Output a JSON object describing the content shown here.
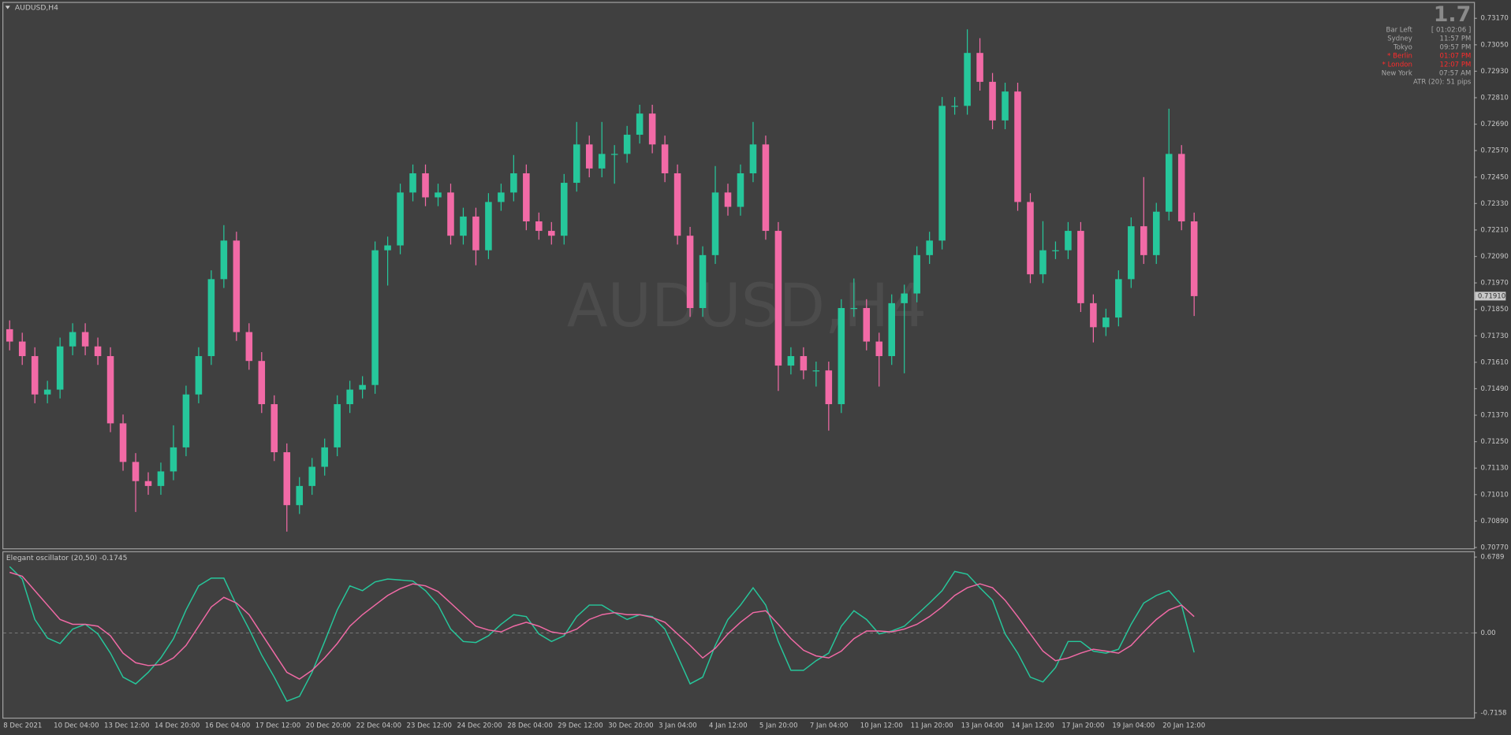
{
  "chart_data": [
    {
      "type": "candlestick",
      "title": "AUDUSD,H4",
      "up_color": "#26c79b",
      "down_color": "#f26aa6",
      "ylim": [
        0.70766,
        0.7324
      ],
      "yticks": [
        {
          "value": 0.7077,
          "label": "0.70770"
        },
        {
          "value": 0.7089,
          "label": "0.70890"
        },
        {
          "value": 0.7101,
          "label": "0.71010"
        },
        {
          "value": 0.7113,
          "label": "0.71130"
        },
        {
          "value": 0.7125,
          "label": "0.71250"
        },
        {
          "value": 0.7137,
          "label": "0.71370"
        },
        {
          "value": 0.7149,
          "label": "0.71490"
        },
        {
          "value": 0.7161,
          "label": "0.71610"
        },
        {
          "value": 0.7173,
          "label": "0.71730"
        },
        {
          "value": 0.7185,
          "label": "0.71850"
        },
        {
          "value": 0.7197,
          "label": "0.71970"
        },
        {
          "value": 0.7209,
          "label": "0.72090"
        },
        {
          "value": 0.7221,
          "label": "0.72210"
        },
        {
          "value": 0.7233,
          "label": "0.72330"
        },
        {
          "value": 0.7245,
          "label": "0.72450"
        },
        {
          "value": 0.7257,
          "label": "0.72570"
        },
        {
          "value": 0.7269,
          "label": "0.72690"
        },
        {
          "value": 0.7281,
          "label": "0.72810"
        },
        {
          "value": 0.7293,
          "label": "0.72930"
        },
        {
          "value": 0.7305,
          "label": "0.73050"
        },
        {
          "value": 0.7317,
          "label": "0.73170"
        }
      ],
      "grid": false,
      "last_price_label": "0.71910",
      "categories": [
        "8 Dec 2021",
        null,
        null,
        null,
        "10 Dec 04:00",
        null,
        null,
        null,
        "13 Dec 12:00",
        null,
        null,
        null,
        "14 Dec 20:00",
        null,
        null,
        null,
        "16 Dec 04:00",
        null,
        null,
        null,
        "17 Dec 12:00",
        null,
        null,
        null,
        "20 Dec 20:00",
        null,
        null,
        null,
        "22 Dec 04:00",
        null,
        null,
        null,
        "23 Dec 12:00",
        null,
        null,
        null,
        "24 Dec 20:00",
        null,
        null,
        null,
        "28 Dec 04:00",
        null,
        null,
        null,
        "29 Dec 12:00",
        null,
        null,
        null,
        "30 Dec 20:00",
        null,
        null,
        null,
        "3 Jan 04:00",
        null,
        null,
        null,
        "4 Jan 12:00",
        null,
        null,
        null,
        "5 Jan 20:00",
        null,
        null,
        null,
        "7 Jan 04:00",
        null,
        null,
        null,
        "10 Jan 12:00",
        null,
        null,
        null,
        "11 Jan 20:00",
        null,
        null,
        null,
        "13 Jan 04:00",
        null,
        null,
        null,
        "14 Jan 12:00",
        null,
        null,
        null,
        "17 Jan 20:00",
        null,
        null,
        null,
        "19 Jan 04:00",
        null,
        null,
        null,
        "20 Jan 12:00",
        null,
        null
      ],
      "ohlc": [
        [
          0.7176,
          0.718,
          0.71664,
          0.71704
        ],
        [
          0.71704,
          0.71744,
          0.71598,
          0.71638
        ],
        [
          0.71638,
          0.71678,
          0.71424,
          0.71464
        ],
        [
          0.71464,
          0.71526,
          0.71424,
          0.71486
        ],
        [
          0.71486,
          0.71722,
          0.71446,
          0.71682
        ],
        [
          0.71682,
          0.71787,
          0.71642,
          0.71747
        ],
        [
          0.71747,
          0.71787,
          0.71642,
          0.71682
        ],
        [
          0.71682,
          0.71722,
          0.71598,
          0.71638
        ],
        [
          0.71638,
          0.71678,
          0.71293,
          0.71333
        ],
        [
          0.71333,
          0.71373,
          0.71118,
          0.71158
        ],
        [
          0.71158,
          0.71198,
          0.70931,
          0.71071
        ],
        [
          0.71071,
          0.71111,
          0.71009,
          0.71049
        ],
        [
          0.71049,
          0.71155,
          0.71009,
          0.71115
        ],
        [
          0.71115,
          0.71324,
          0.71075,
          0.71224
        ],
        [
          0.71224,
          0.71504,
          0.71184,
          0.71464
        ],
        [
          0.71464,
          0.71678,
          0.71424,
          0.71638
        ],
        [
          0.71638,
          0.72027,
          0.71598,
          0.71987
        ],
        [
          0.71987,
          0.72232,
          0.71947,
          0.72162
        ],
        [
          0.72162,
          0.72202,
          0.71707,
          0.71747
        ],
        [
          0.71747,
          0.71787,
          0.71576,
          0.71616
        ],
        [
          0.71616,
          0.71656,
          0.7138,
          0.7142
        ],
        [
          0.7142,
          0.7146,
          0.71162,
          0.71202
        ],
        [
          0.71202,
          0.71242,
          0.70842,
          0.70962
        ],
        [
          0.70962,
          0.71089,
          0.70922,
          0.71049
        ],
        [
          0.71049,
          0.71176,
          0.71009,
          0.71136
        ],
        [
          0.71136,
          0.71264,
          0.71096,
          0.71224
        ],
        [
          0.71224,
          0.7146,
          0.71184,
          0.7142
        ],
        [
          0.7142,
          0.71526,
          0.7138,
          0.71486
        ],
        [
          0.71486,
          0.71547,
          0.71446,
          0.71507
        ],
        [
          0.71507,
          0.72158,
          0.71467,
          0.72118
        ],
        [
          0.72118,
          0.7218,
          0.71958,
          0.7214
        ],
        [
          0.7214,
          0.7242,
          0.721,
          0.7238
        ],
        [
          0.7238,
          0.72507,
          0.7234,
          0.72467
        ],
        [
          0.72467,
          0.72507,
          0.72318,
          0.72358
        ],
        [
          0.72358,
          0.7242,
          0.72318,
          0.7238
        ],
        [
          0.7238,
          0.7242,
          0.72144,
          0.72184
        ],
        [
          0.72184,
          0.72311,
          0.72144,
          0.72271
        ],
        [
          0.72271,
          0.72311,
          0.7205,
          0.72118
        ],
        [
          0.72118,
          0.72377,
          0.72078,
          0.72337
        ],
        [
          0.72337,
          0.7242,
          0.72297,
          0.7238
        ],
        [
          0.7238,
          0.7255,
          0.7234,
          0.72467
        ],
        [
          0.72467,
          0.72507,
          0.72209,
          0.72249
        ],
        [
          0.72249,
          0.72289,
          0.72166,
          0.72206
        ],
        [
          0.72206,
          0.72246,
          0.72144,
          0.72184
        ],
        [
          0.72184,
          0.72464,
          0.72144,
          0.72424
        ],
        [
          0.72424,
          0.727,
          0.72384,
          0.72598
        ],
        [
          0.72598,
          0.72638,
          0.72449,
          0.72489
        ],
        [
          0.72489,
          0.727,
          0.72449,
          0.72555
        ],
        [
          0.72555,
          0.72595,
          0.7242,
          0.72555
        ],
        [
          0.72555,
          0.72682,
          0.72515,
          0.72642
        ],
        [
          0.72642,
          0.72778,
          0.72602,
          0.72738
        ],
        [
          0.72738,
          0.72778,
          0.72558,
          0.72598
        ],
        [
          0.72598,
          0.72638,
          0.72427,
          0.72467
        ],
        [
          0.72467,
          0.72507,
          0.72144,
          0.72184
        ],
        [
          0.72184,
          0.72224,
          0.71816,
          0.71856
        ],
        [
          0.71856,
          0.72136,
          0.71816,
          0.72096
        ],
        [
          0.72096,
          0.725,
          0.72056,
          0.7238
        ],
        [
          0.7238,
          0.7242,
          0.72275,
          0.72315
        ],
        [
          0.72315,
          0.72507,
          0.72275,
          0.72467
        ],
        [
          0.72467,
          0.727,
          0.72427,
          0.72598
        ],
        [
          0.72598,
          0.72638,
          0.72166,
          0.72206
        ],
        [
          0.72206,
          0.72246,
          0.7148,
          0.71595
        ],
        [
          0.71595,
          0.71678,
          0.71555,
          0.71638
        ],
        [
          0.71638,
          0.71678,
          0.71533,
          0.71573
        ],
        [
          0.71573,
          0.71613,
          0.715,
          0.71573
        ],
        [
          0.71573,
          0.71613,
          0.713,
          0.7142
        ],
        [
          0.7142,
          0.71896,
          0.7138,
          0.71856
        ],
        [
          0.71856,
          0.7199,
          0.71816,
          0.71856
        ],
        [
          0.71856,
          0.71896,
          0.71664,
          0.71704
        ],
        [
          0.71704,
          0.71744,
          0.715,
          0.71638
        ],
        [
          0.71638,
          0.71918,
          0.71598,
          0.71878
        ],
        [
          0.71878,
          0.71962,
          0.7156,
          0.71922
        ],
        [
          0.71922,
          0.72136,
          0.71882,
          0.72096
        ],
        [
          0.72096,
          0.72202,
          0.72056,
          0.72162
        ],
        [
          0.72162,
          0.72813,
          0.72122,
          0.72773
        ],
        [
          0.72773,
          0.72813,
          0.72733,
          0.72773
        ],
        [
          0.72773,
          0.7312,
          0.72733,
          0.73013
        ],
        [
          0.73013,
          0.7308,
          0.72842,
          0.72882
        ],
        [
          0.72882,
          0.72922,
          0.72667,
          0.72707
        ],
        [
          0.72707,
          0.72878,
          0.72667,
          0.72838
        ],
        [
          0.72838,
          0.72878,
          0.72297,
          0.72337
        ],
        [
          0.72337,
          0.72377,
          0.71969,
          0.72009
        ],
        [
          0.72009,
          0.7225,
          0.71969,
          0.72118
        ],
        [
          0.72118,
          0.72158,
          0.72078,
          0.72118
        ],
        [
          0.72118,
          0.72246,
          0.72078,
          0.72206
        ],
        [
          0.72206,
          0.72246,
          0.71838,
          0.71878
        ],
        [
          0.71878,
          0.71918,
          0.717,
          0.71769
        ],
        [
          0.71769,
          0.71853,
          0.71729,
          0.71813
        ],
        [
          0.71813,
          0.72027,
          0.71773,
          0.71987
        ],
        [
          0.71987,
          0.72267,
          0.71947,
          0.72227
        ],
        [
          0.72227,
          0.7245,
          0.72056,
          0.72096
        ],
        [
          0.72096,
          0.72333,
          0.72056,
          0.72293
        ],
        [
          0.72293,
          0.7276,
          0.72253,
          0.72555
        ],
        [
          0.72555,
          0.72595,
          0.72209,
          0.72249
        ],
        [
          0.72249,
          0.72289,
          0.7182,
          0.7191
        ]
      ]
    },
    {
      "type": "line",
      "title": "Elegant oscillator (20,50) -0.1745",
      "ylim": [
        -0.7588,
        0.7306
      ],
      "yticks": [
        -0.7158,
        {
          "value": 0,
          "label": "0.00"
        },
        0.6789
      ],
      "zero_line": true,
      "series": [
        {
          "color": "#26c79b",
          "values": [
            0.593,
            0.482,
            0.12,
            -0.046,
            -0.095,
            0.034,
            0.077,
            -0.009,
            -0.181,
            -0.396,
            -0.456,
            -0.353,
            -0.224,
            -0.052,
            0.206,
            0.421,
            0.49,
            0.49,
            0.249,
            0.034,
            -0.198,
            -0.396,
            -0.611,
            -0.568,
            -0.353,
            -0.077,
            0.206,
            0.421,
            0.378,
            0.456,
            0.482,
            0.473,
            0.464,
            0.378,
            0.249,
            0.034,
            -0.077,
            -0.086,
            -0.026,
            0.077,
            0.163,
            0.146,
            -0.009,
            -0.077,
            -0.026,
            0.146,
            0.249,
            0.249,
            0.181,
            0.12,
            0.163,
            0.146,
            0.034,
            -0.206,
            -0.456,
            -0.396,
            -0.112,
            0.12,
            0.249,
            0.404,
            0.249,
            -0.077,
            -0.335,
            -0.335,
            -0.249,
            -0.181,
            0.06,
            0.198,
            0.12,
            -0.009,
            0.017,
            0.06,
            0.163,
            0.267,
            0.378,
            0.55,
            0.525,
            0.404,
            0.292,
            -0.009,
            -0.181,
            -0.396,
            -0.439,
            -0.31,
            -0.077,
            -0.077,
            -0.163,
            -0.181,
            -0.146,
            0.077,
            0.267,
            0.335,
            0.378,
            0.249,
            -0.175
          ]
        },
        {
          "color": "#f26aa6",
          "values": [
            0.542,
            0.507,
            0.378,
            0.249,
            0.12,
            0.077,
            0.077,
            0.06,
            -0.026,
            -0.181,
            -0.267,
            -0.292,
            -0.284,
            -0.224,
            -0.112,
            0.06,
            0.232,
            0.318,
            0.267,
            0.163,
            -0.009,
            -0.181,
            -0.353,
            -0.413,
            -0.335,
            -0.224,
            -0.095,
            0.06,
            0.163,
            0.249,
            0.335,
            0.396,
            0.439,
            0.421,
            0.37,
            0.267,
            0.163,
            0.06,
            0.026,
            0.009,
            0.06,
            0.095,
            0.06,
            0.009,
            -0.009,
            0.034,
            0.12,
            0.163,
            0.181,
            0.163,
            0.163,
            0.138,
            0.095,
            -0.009,
            -0.112,
            -0.224,
            -0.138,
            -0.009,
            0.095,
            0.181,
            0.198,
            0.077,
            -0.052,
            -0.155,
            -0.206,
            -0.224,
            -0.163,
            -0.052,
            0.017,
            0.017,
            0.009,
            0.034,
            0.077,
            0.146,
            0.232,
            0.335,
            0.404,
            0.439,
            0.404,
            0.292,
            0.146,
            -0.009,
            -0.163,
            -0.249,
            -0.224,
            -0.181,
            -0.146,
            -0.163,
            -0.181,
            -0.112,
            0.009,
            0.12,
            0.206,
            0.249,
            0.146
          ]
        }
      ]
    }
  ],
  "info_panel": {
    "spread": "1.7",
    "rows": [
      {
        "label": "Bar Left",
        "value": "[ 01:02:06 ]",
        "alert": false
      },
      {
        "label": "Sydney",
        "value": "11:57 PM",
        "alert": false
      },
      {
        "label": "Tokyo",
        "value": "09:57 PM",
        "alert": false
      },
      {
        "label": "* Berlin",
        "value": "01:07 PM",
        "alert": true
      },
      {
        "label": "* London",
        "value": "12:07 PM",
        "alert": true
      },
      {
        "label": "New York",
        "value": "07:57 AM",
        "alert": false
      }
    ],
    "atr": "ATR (20): 51 pips"
  }
}
